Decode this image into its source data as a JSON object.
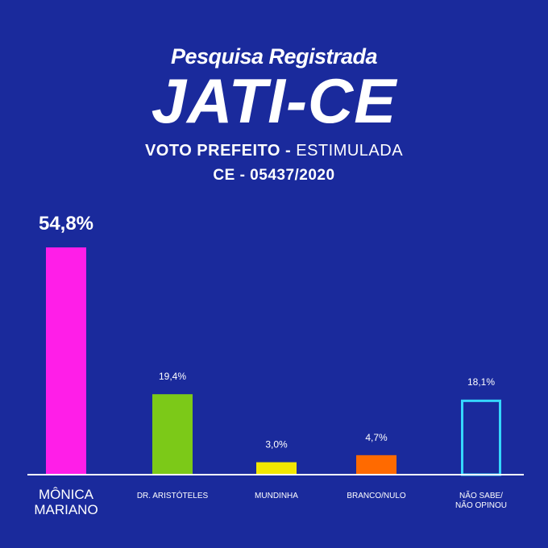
{
  "header": {
    "subtitle": "Pesquisa Registrada",
    "title": "JATI-CE",
    "line1_bold": "VOTO PREFEITO - ",
    "line1_light": "ESTIMULADA",
    "line2": "CE - 05437/2020"
  },
  "chart_data": {
    "type": "bar",
    "categories": [
      "MÔNICA MARIANO",
      "DR. ARISTÓTELES",
      "MUNDINHA",
      "BRANCO/NULO",
      "NÃO SABE/ NÃO OPINOU"
    ],
    "values": [
      54.8,
      19.4,
      3.0,
      4.7,
      18.1
    ],
    "value_labels": [
      "54,8%",
      "19,4%",
      "3,0%",
      "4,7%",
      "18,1%"
    ],
    "colors": [
      "#ff1ee8",
      "#7cc918",
      "#f2e600",
      "#ff6a00",
      "outline:#35d7ff"
    ],
    "ylim": [
      0,
      54.8
    ],
    "grid": false
  }
}
